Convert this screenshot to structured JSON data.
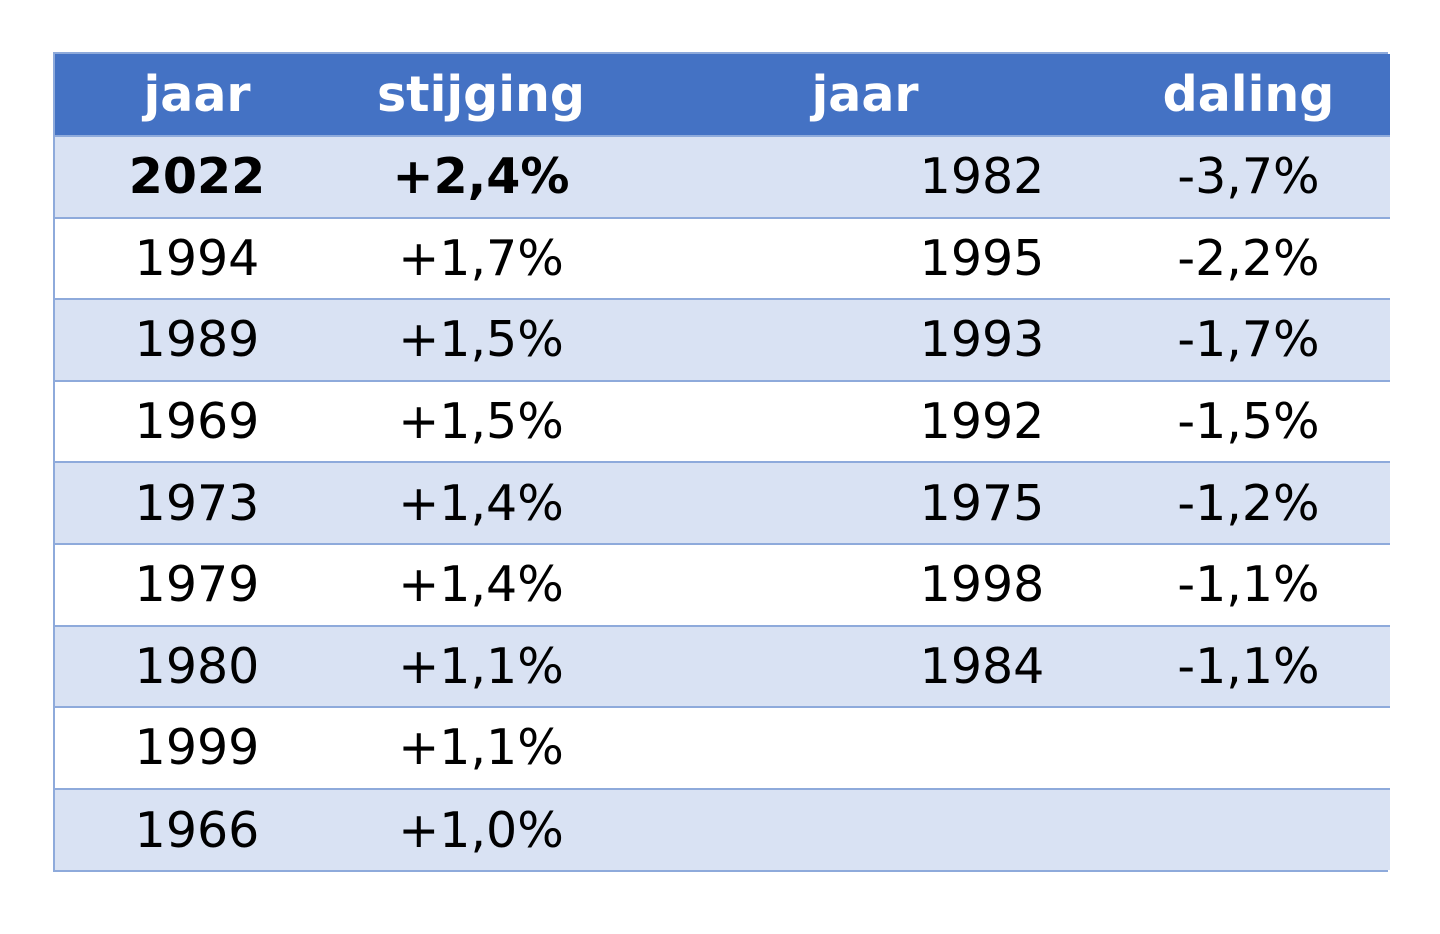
{
  "headers": {
    "rise_year": "jaar",
    "rise_value": "stijging",
    "fall_year": "jaar",
    "fall_value": "daling"
  },
  "rows": [
    {
      "rise_year": "2022",
      "rise_value": "+2,4%",
      "fall_year": "1982",
      "fall_value": "-3,7%"
    },
    {
      "rise_year": "1994",
      "rise_value": "+1,7%",
      "fall_year": "1995",
      "fall_value": "-2,2%"
    },
    {
      "rise_year": "1989",
      "rise_value": "+1,5%",
      "fall_year": "1993",
      "fall_value": "-1,7%"
    },
    {
      "rise_year": "1969",
      "rise_value": "+1,5%",
      "fall_year": "1992",
      "fall_value": "-1,5%"
    },
    {
      "rise_year": "1973",
      "rise_value": "+1,4%",
      "fall_year": "1975",
      "fall_value": "-1,2%"
    },
    {
      "rise_year": "1979",
      "rise_value": "+1,4%",
      "fall_year": "1998",
      "fall_value": "-1,1%"
    },
    {
      "rise_year": "1980",
      "rise_value": "+1,1%",
      "fall_year": "1984",
      "fall_value": "-1,1%"
    },
    {
      "rise_year": "1999",
      "rise_value": "+1,1%",
      "fall_year": "",
      "fall_value": ""
    },
    {
      "rise_year": "1966",
      "rise_value": "+1,0%",
      "fall_year": "",
      "fall_value": ""
    }
  ],
  "colors": {
    "header_bg": "#4472c4",
    "band_bg": "#d9e2f3",
    "border": "#8eaadb"
  }
}
